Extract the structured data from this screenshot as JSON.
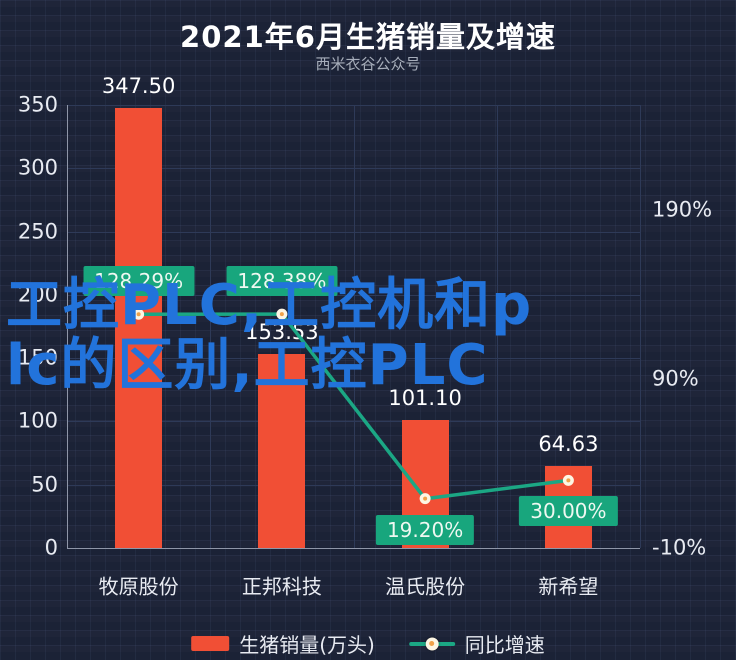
{
  "title": "2021年6月生猪销量及增速",
  "subtitle": "西米衣谷公众号",
  "watermark": {
    "full_text": "工控PLC,工控机和plc的区别,工控PLC",
    "line1": "工控PLC,工控机和p",
    "line2": "lc的区别,工控PLC",
    "color": "#2273db"
  },
  "chart_data": {
    "type": "bar+line combo",
    "categories": [
      "牧原股份",
      "正邦科技",
      "温氏股份",
      "新希望"
    ],
    "series": [
      {
        "name": "生猪销量(万头)",
        "type": "bar",
        "values": [
          347.5,
          153.53,
          101.1,
          64.63
        ],
        "value_labels": [
          "347.50",
          "153.53",
          "101.10",
          "64.63"
        ],
        "color": "#f14f35"
      },
      {
        "name": "同比增速",
        "type": "line",
        "values": [
          128.29,
          128.38,
          19.2,
          30.0
        ],
        "value_labels": [
          "128.29%",
          "128.38%",
          "19.20%",
          "30.00%"
        ],
        "label_positions": [
          "above",
          "above",
          "below",
          "below"
        ],
        "color": "#1ba784",
        "label_bg_color": "#18a67d"
      }
    ],
    "left_axis": {
      "ticks": [
        350,
        300,
        250,
        200,
        150,
        100,
        50,
        0
      ],
      "min": 0,
      "max": 350
    },
    "right_axis": {
      "ticks": [
        "190%",
        "90%",
        "-10%"
      ],
      "tick_values": [
        190,
        90,
        -10
      ],
      "min": -10,
      "units_per_100px": 59.17
    },
    "legend": [
      {
        "label": "生猪销量(万头)",
        "marker": "bar",
        "color": "#f14f35"
      },
      {
        "label": "同比增速",
        "marker": "line-dot",
        "color": "#1ba784"
      }
    ],
    "grid": true
  },
  "colors": {
    "background": "#1b2236",
    "bar": "#f14f35",
    "line": "#1ba784",
    "badge": "#18a67d",
    "gridline": "#2e3a58",
    "axis_text": "#e8ebf2",
    "title_text": "#ffffff",
    "subtitle_text": "#a7aebb",
    "watermark_blue": "#2273db"
  }
}
